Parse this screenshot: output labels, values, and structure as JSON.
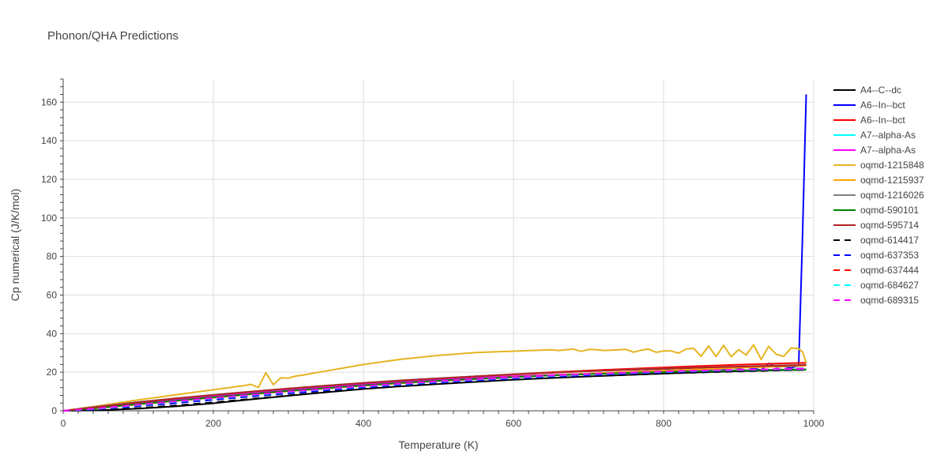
{
  "chart_data": {
    "type": "line",
    "title": "Phonon/QHA Predictions",
    "xlabel": "Temperature (K)",
    "ylabel": "Cp numerical (J/K/mol)",
    "xlim": [
      0,
      1000
    ],
    "ylim": [
      0,
      172
    ],
    "xticks": [
      0,
      200,
      400,
      600,
      800,
      1000
    ],
    "yticks": [
      0,
      20,
      40,
      60,
      80,
      100,
      120,
      140,
      160
    ],
    "grid": true,
    "legend_position": "right",
    "series": [
      {
        "name": "A4--C--dc",
        "color": "#000000",
        "dash": "solid",
        "x": [
          0,
          50,
          100,
          150,
          200,
          250,
          300,
          350,
          400,
          450,
          500,
          550,
          600,
          650,
          700,
          750,
          800,
          850,
          900,
          950,
          990
        ],
        "y": [
          0,
          0.3,
          1.1,
          2.3,
          3.9,
          5.9,
          7.8,
          9.6,
          11.3,
          12.7,
          13.9,
          15.0,
          16.1,
          17.0,
          17.8,
          18.6,
          19.3,
          20.0,
          20.5,
          21.0,
          21.3
        ]
      },
      {
        "name": "A6--In--bct",
        "color": "#0000ff",
        "dash": "solid",
        "x": [
          0,
          50,
          100,
          150,
          200,
          250,
          300,
          350,
          400,
          450,
          500,
          550,
          600,
          650,
          700,
          750,
          800,
          810,
          820,
          830,
          840,
          850,
          860,
          870,
          880,
          890,
          900,
          910,
          920,
          930,
          940,
          950,
          960,
          970,
          980,
          985,
          990
        ],
        "y": [
          0,
          1.6,
          3.4,
          5.1,
          6.8,
          8.5,
          10.1,
          11.6,
          13.0,
          14.3,
          15.4,
          16.4,
          17.4,
          18.4,
          19.3,
          20.1,
          21.0,
          21.3,
          21.1,
          21.6,
          21.4,
          22.0,
          21.3,
          22.3,
          21.7,
          22.5,
          21.9,
          22.7,
          22.0,
          21.1,
          24.6,
          22.6,
          23.0,
          22.2,
          23.5,
          90,
          164
        ]
      },
      {
        "name": "A6--In--bct",
        "color": "#ff0000",
        "dash": "solid",
        "x": [
          0,
          50,
          100,
          150,
          200,
          250,
          300,
          350,
          400,
          450,
          500,
          550,
          600,
          650,
          700,
          750,
          800,
          850,
          900,
          950,
          990
        ],
        "y": [
          0,
          1.8,
          3.7,
          5.6,
          7.5,
          9.3,
          11.0,
          12.6,
          14.1,
          15.5,
          16.7,
          17.9,
          19.0,
          20.0,
          20.9,
          21.7,
          22.5,
          23.2,
          23.9,
          24.5,
          24.9
        ]
      },
      {
        "name": "A7--alpha-As",
        "color": "#00ffff",
        "dash": "solid",
        "x": [
          0,
          50,
          100,
          150,
          200,
          250,
          300,
          350,
          400,
          450,
          500,
          550,
          600,
          650,
          700,
          750,
          800,
          850,
          900,
          950,
          990
        ],
        "y": [
          0,
          1.7,
          3.5,
          5.3,
          7.1,
          8.8,
          10.4,
          11.9,
          13.3,
          14.6,
          15.8,
          16.8,
          17.7,
          18.5,
          19.2,
          19.8,
          20.3,
          20.7,
          21.0,
          21.2,
          21.4
        ]
      },
      {
        "name": "A7--alpha-As",
        "color": "#ff00ff",
        "dash": "solid",
        "x": [
          0,
          50,
          100,
          150,
          200,
          250,
          300,
          350,
          400,
          450,
          500,
          550,
          600,
          650,
          700,
          750,
          800,
          850,
          900,
          950,
          990
        ],
        "y": [
          0,
          1.9,
          3.8,
          5.7,
          7.6,
          9.3,
          10.9,
          12.4,
          13.7,
          15.0,
          16.1,
          17.1,
          17.9,
          18.6,
          19.3,
          19.8,
          20.3,
          20.7,
          21.0,
          21.3,
          21.5
        ]
      },
      {
        "name": "oqmd-1215848",
        "color": "#e6b422",
        "dash": "solid",
        "x": [
          0,
          50,
          100,
          150,
          200,
          240,
          250,
          260,
          270,
          280,
          290,
          300,
          310,
          320,
          330,
          350,
          400,
          450,
          500,
          550,
          600,
          650,
          660,
          670,
          680,
          690,
          700,
          710,
          720,
          730,
          740,
          750,
          760,
          770,
          780,
          790,
          800,
          810,
          820,
          830,
          840,
          850,
          860,
          870,
          880,
          890,
          900,
          910,
          920,
          930,
          940,
          950,
          960,
          970,
          980,
          985,
          990
        ],
        "y": [
          0,
          2.8,
          5.6,
          8.3,
          10.9,
          13.0,
          13.7,
          12.1,
          19.7,
          13.5,
          17.1,
          16.9,
          18.0,
          18.5,
          19.3,
          20.6,
          24.0,
          26.7,
          28.7,
          30.2,
          30.9,
          31.6,
          31.3,
          31.6,
          32.0,
          30.8,
          31.8,
          31.7,
          31.3,
          31.4,
          31.6,
          31.8,
          30.4,
          31.4,
          32.0,
          30.3,
          31.0,
          31.0,
          29.9,
          32.0,
          32.4,
          28.3,
          33.6,
          28.1,
          34.0,
          28.0,
          31.7,
          28.9,
          34.2,
          26.6,
          33.4,
          29.3,
          28.2,
          32.6,
          32.2,
          30.6,
          24.8
        ]
      },
      {
        "name": "oqmd-1215937",
        "color": "#ffa500",
        "dash": "solid",
        "x": [
          0,
          50,
          100,
          150,
          200,
          250,
          300,
          350,
          400,
          450,
          500,
          550,
          600,
          650,
          700,
          750,
          800,
          850,
          900,
          950,
          990
        ],
        "y": [
          0,
          1.5,
          3.3,
          5.1,
          6.8,
          8.5,
          10.1,
          11.6,
          13.0,
          14.3,
          15.5,
          16.5,
          17.5,
          18.4,
          19.3,
          20.1,
          20.9,
          21.6,
          22.3,
          22.9,
          23.4
        ]
      },
      {
        "name": "oqmd-1216026",
        "color": "#808080",
        "dash": "solid",
        "x": [
          0,
          50,
          100,
          150,
          200,
          250,
          300,
          350,
          400,
          450,
          500,
          550,
          600,
          650,
          700,
          750,
          800,
          850,
          900,
          950,
          990
        ],
        "y": [
          0,
          2.4,
          4.6,
          6.5,
          8.3,
          10.0,
          11.6,
          13.1,
          14.5,
          15.8,
          16.9,
          17.9,
          18.9,
          19.8,
          20.6,
          21.3,
          21.9,
          22.5,
          23.0,
          23.5,
          23.9
        ]
      },
      {
        "name": "oqmd-590101",
        "color": "#008000",
        "dash": "solid",
        "x": [
          0,
          50,
          100,
          150,
          200,
          250,
          300,
          350,
          400,
          450,
          500,
          550,
          600,
          650,
          700,
          750,
          800,
          850,
          900,
          950,
          990
        ],
        "y": [
          0,
          1.6,
          3.5,
          5.3,
          7.0,
          8.7,
          10.3,
          11.8,
          13.2,
          14.5,
          15.6,
          16.6,
          17.5,
          18.3,
          19.0,
          19.6,
          20.1,
          20.5,
          20.9,
          21.2,
          21.4
        ]
      },
      {
        "name": "oqmd-595714",
        "color": "#b22222",
        "dash": "solid",
        "x": [
          0,
          50,
          100,
          150,
          200,
          250,
          300,
          350,
          400,
          450,
          500,
          550,
          600,
          650,
          700,
          750,
          800,
          850,
          900,
          950,
          990
        ],
        "y": [
          0,
          2.2,
          4.4,
          6.4,
          8.2,
          9.9,
          11.5,
          13.0,
          14.4,
          15.7,
          16.8,
          17.8,
          18.8,
          19.7,
          20.5,
          21.2,
          21.8,
          22.4,
          22.9,
          23.3,
          23.7
        ]
      },
      {
        "name": "oqmd-614417",
        "color": "#000000",
        "dash": "dash",
        "x": [
          0,
          50,
          100,
          150,
          200,
          250,
          300,
          350,
          400,
          450,
          500,
          550,
          600,
          650,
          700,
          750,
          800,
          850,
          900,
          950,
          990
        ],
        "y": [
          0,
          0.4,
          1.4,
          2.8,
          4.4,
          6.2,
          8.0,
          9.8,
          11.5,
          12.9,
          14.1,
          15.2,
          16.2,
          17.1,
          17.9,
          18.6,
          19.3,
          19.9,
          20.4,
          20.9,
          21.2
        ]
      },
      {
        "name": "oqmd-637353",
        "color": "#0000ff",
        "dash": "dash",
        "x": [
          0,
          50,
          100,
          150,
          200,
          250,
          300,
          350,
          400,
          450,
          500,
          550,
          600,
          650,
          700,
          750,
          800,
          850,
          900,
          950,
          990
        ],
        "y": [
          0,
          0.9,
          2.4,
          4.0,
          5.7,
          7.4,
          9.0,
          10.6,
          12.0,
          13.4,
          14.6,
          15.7,
          16.7,
          17.6,
          18.4,
          19.2,
          19.9,
          20.5,
          21.1,
          21.6,
          22.0
        ]
      },
      {
        "name": "oqmd-637444",
        "color": "#ff0000",
        "dash": "dash",
        "x": [
          0,
          50,
          100,
          150,
          200,
          250,
          300,
          350,
          400,
          450,
          500,
          550,
          600,
          650,
          700,
          750,
          800,
          850,
          900,
          950,
          990
        ],
        "y": [
          0,
          1.3,
          3.0,
          4.8,
          6.5,
          8.2,
          9.8,
          11.3,
          12.7,
          14.0,
          15.2,
          16.3,
          17.3,
          18.2,
          19.0,
          19.7,
          20.3,
          20.8,
          21.2,
          21.5,
          21.7
        ]
      },
      {
        "name": "oqmd-684627",
        "color": "#00ffff",
        "dash": "dash",
        "x": [
          0,
          50,
          100,
          150,
          200,
          250,
          300,
          350,
          400,
          450,
          500,
          550,
          600,
          650,
          700,
          750,
          800,
          850,
          900,
          950,
          990
        ],
        "y": [
          0,
          1.2,
          2.9,
          4.7,
          6.4,
          8.1,
          9.7,
          11.2,
          12.6,
          13.9,
          15.1,
          16.2,
          17.2,
          18.1,
          18.9,
          19.6,
          20.2,
          20.7,
          21.1,
          21.4,
          21.6
        ]
      },
      {
        "name": "oqmd-689315",
        "color": "#ff00ff",
        "dash": "dash",
        "x": [
          0,
          50,
          100,
          150,
          200,
          250,
          300,
          350,
          400,
          450,
          500,
          550,
          600,
          650,
          700,
          750,
          800,
          850,
          900,
          950,
          990
        ],
        "y": [
          0,
          1.4,
          3.1,
          4.9,
          6.6,
          8.3,
          9.9,
          11.4,
          12.8,
          14.1,
          15.3,
          16.4,
          17.4,
          18.3,
          19.1,
          19.8,
          20.4,
          20.9,
          21.3,
          21.6,
          21.8
        ]
      }
    ]
  }
}
